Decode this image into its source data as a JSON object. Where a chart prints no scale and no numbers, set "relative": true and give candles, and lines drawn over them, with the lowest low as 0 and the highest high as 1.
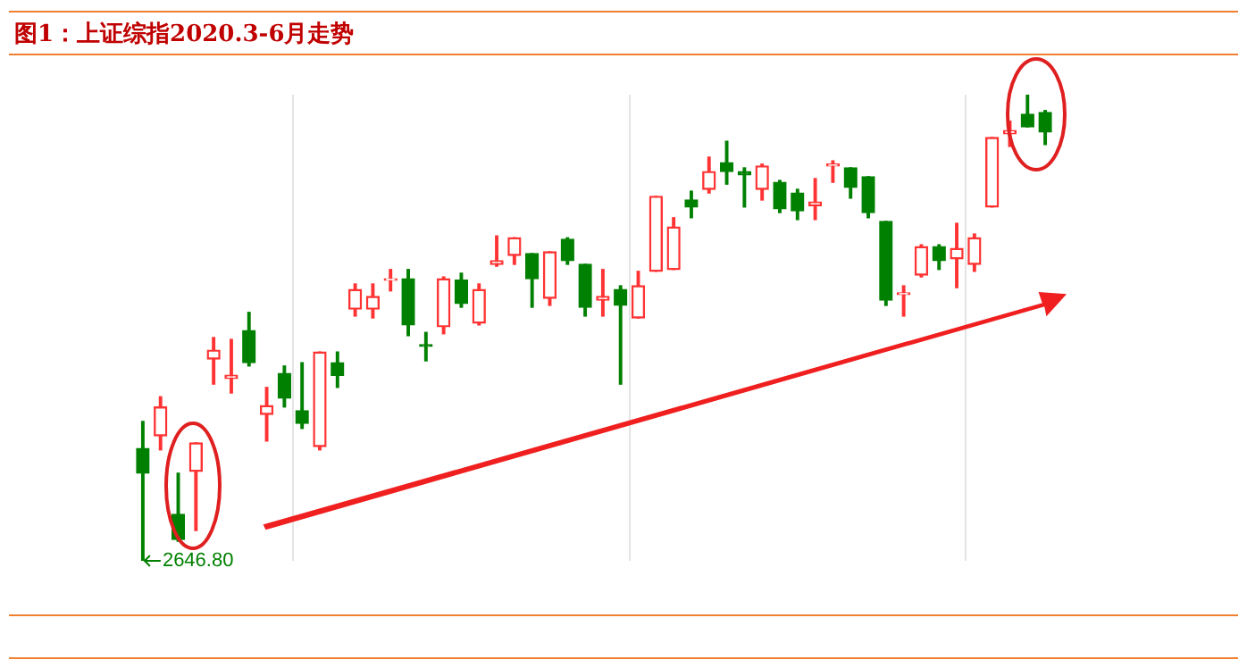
{
  "chart_data": {
    "type": "candlestick",
    "title": "图1：上证综指2020.3-6月走势",
    "relative": true,
    "grid": "x",
    "categories": [
      null,
      null,
      null,
      null,
      null,
      null,
      null,
      null,
      null,
      null,
      null,
      null,
      null,
      null,
      null,
      null,
      null,
      null,
      null,
      null,
      null,
      null,
      null,
      null,
      null,
      null,
      null,
      null,
      null,
      null,
      null,
      null,
      null,
      null,
      null,
      null,
      null,
      null,
      null,
      null,
      null,
      null,
      null,
      null,
      null,
      null,
      null,
      null,
      null,
      null,
      null,
      null
    ],
    "ohlc": [
      [
        0.241,
        0.299,
        0,
        0.188
      ],
      [
        0.268,
        0.352,
        0.238,
        0.33
      ],
      [
        0.1,
        0.188,
        0.042,
        0.046
      ],
      [
        0.192,
        0.253,
        0.065,
        0.253
      ],
      [
        0.433,
        0.479,
        0.379,
        0.452
      ],
      [
        0.391,
        0.475,
        0.36,
        0.398
      ],
      [
        0.494,
        0.533,
        0.418,
        0.425
      ],
      [
        0.314,
        0.372,
        0.257,
        0.333
      ],
      [
        0.402,
        0.418,
        0.33,
        0.349
      ],
      [
        0.322,
        0.425,
        0.284,
        0.295
      ],
      [
        0.245,
        0.448,
        0.238,
        0.448
      ],
      [
        0.425,
        0.448,
        0.372,
        0.398
      ],
      [
        0.54,
        0.594,
        0.525,
        0.582
      ],
      [
        0.54,
        0.594,
        0.521,
        0.567
      ],
      [
        0.602,
        0.625,
        0.579,
        0.605
      ],
      [
        0.605,
        0.625,
        0.483,
        0.506
      ],
      [
        0.464,
        0.49,
        0.429,
        0.46
      ],
      [
        0.502,
        0.609,
        0.487,
        0.605
      ],
      [
        0.602,
        0.617,
        0.544,
        0.552
      ],
      [
        0.51,
        0.594,
        0.506,
        0.582
      ],
      [
        0.636,
        0.697,
        0.632,
        0.644
      ],
      [
        0.655,
        0.693,
        0.636,
        0.693
      ],
      [
        0.659,
        0.659,
        0.544,
        0.605
      ],
      [
        0.563,
        0.663,
        0.548,
        0.663
      ],
      [
        0.69,
        0.693,
        0.636,
        0.644
      ],
      [
        0.636,
        0.636,
        0.525,
        0.544
      ],
      [
        0.559,
        0.625,
        0.525,
        0.567
      ],
      [
        0.582,
        0.59,
        0.379,
        0.548
      ],
      [
        0.521,
        0.621,
        0.521,
        0.59
      ],
      [
        0.621,
        0.782,
        0.621,
        0.782
      ],
      [
        0.625,
        0.736,
        0.625,
        0.716
      ],
      [
        0.774,
        0.793,
        0.736,
        0.759
      ],
      [
        0.797,
        0.866,
        0.789,
        0.835
      ],
      [
        0.854,
        0.9,
        0.808,
        0.835
      ],
      [
        0.835,
        0.843,
        0.759,
        0.828
      ],
      [
        0.797,
        0.851,
        0.774,
        0.847
      ],
      [
        0.812,
        0.816,
        0.747,
        0.755
      ],
      [
        0.789,
        0.797,
        0.732,
        0.751
      ],
      [
        0.762,
        0.82,
        0.732,
        0.77
      ],
      [
        0.847,
        0.858,
        0.812,
        0.851
      ],
      [
        0.843,
        0.843,
        0.778,
        0.801
      ],
      [
        0.824,
        0.824,
        0.736,
        0.747
      ],
      [
        0.728,
        0.728,
        0.548,
        0.559
      ],
      [
        0.571,
        0.59,
        0.525,
        0.575
      ],
      [
        0.613,
        0.678,
        0.609,
        0.674
      ],
      [
        0.674,
        0.678,
        0.625,
        0.644
      ],
      [
        0.648,
        0.724,
        0.586,
        0.67
      ],
      [
        0.636,
        0.701,
        0.621,
        0.693
      ],
      [
        0.759,
        0.908,
        0.759,
        0.908
      ],
      [
        0.916,
        0.943,
        0.889,
        0.923
      ],
      [
        0.958,
        1,
        0.931,
        0.931
      ],
      [
        0.962,
        0.966,
        0.893,
        0.92
      ]
    ],
    "colors": [
      "#008000",
      "#ff3333",
      "#008000",
      "#ff3333",
      "#ff3333",
      "#ff3333",
      "#008000",
      "#ff3333",
      "#008000",
      "#008000",
      "#ff3333",
      "#008000",
      "#ff3333",
      "#ff3333",
      "#ff3333",
      "#008000",
      "#008000",
      "#ff3333",
      "#008000",
      "#ff3333",
      "#ff3333",
      "#ff3333",
      "#008000",
      "#ff3333",
      "#008000",
      "#008000",
      "#ff3333",
      "#008000",
      "#ff3333",
      "#ff3333",
      "#ff3333",
      "#008000",
      "#ff3333",
      "#008000",
      "#008000",
      "#ff3333",
      "#008000",
      "#008000",
      "#ff3333",
      "#ff3333",
      "#008000",
      "#008000",
      "#008000",
      "#ff3333",
      "#ff3333",
      "#008000",
      "#ff3333",
      "#ff3333",
      "#ff3333",
      "#ff3333",
      "#008000",
      "#008000"
    ],
    "annotations": [
      "2646.80"
    ]
  }
}
